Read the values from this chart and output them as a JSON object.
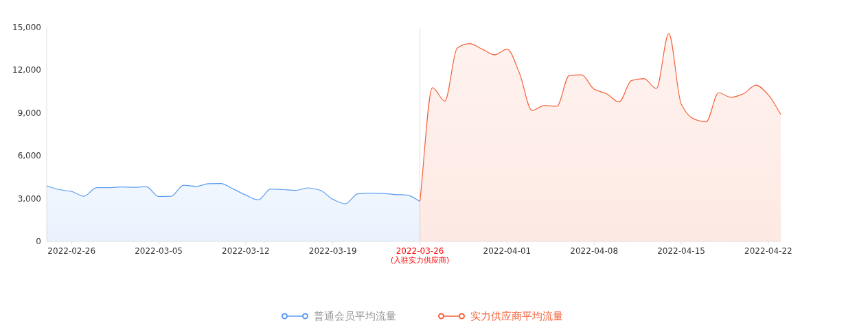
{
  "chart_data": {
    "type": "area",
    "categories": [
      null,
      null,
      "2022-02-26",
      null,
      null,
      null,
      null,
      null,
      null,
      "2022-03-05",
      null,
      null,
      null,
      null,
      null,
      null,
      "2022-03-12",
      null,
      null,
      null,
      null,
      null,
      null,
      "2022-03-19",
      null,
      null,
      null,
      null,
      null,
      null,
      "2022-03-26",
      null,
      null,
      null,
      null,
      null,
      null,
      "2022-04-01",
      null,
      null,
      null,
      null,
      null,
      null,
      "2022-04-08",
      null,
      null,
      null,
      null,
      null,
      null,
      "2022-04-15",
      null,
      null,
      null,
      null,
      null,
      null,
      "2022-04-22",
      null
    ],
    "series": [
      {
        "name": "普通会员平均流量",
        "color": "#5b9cf0",
        "values": [
          3890,
          3630,
          3500,
          3170,
          3770,
          3770,
          3820,
          3790,
          3840,
          3150,
          3170,
          3940,
          3860,
          4040,
          4060,
          3670,
          3250,
          2910,
          3670,
          3630,
          3580,
          3750,
          3580,
          2950,
          2640,
          3340,
          3380,
          3360,
          3290,
          3240,
          2810,
          null,
          null,
          null,
          null,
          null,
          null,
          null,
          null,
          null,
          null,
          null,
          null,
          null,
          null,
          null,
          null,
          null,
          null,
          null,
          null,
          null,
          null,
          null,
          null,
          null,
          null,
          null,
          null,
          null
        ]
      },
      {
        "name": "实力供应商平均流量",
        "color": "#f4623a",
        "values": [
          null,
          null,
          null,
          null,
          null,
          null,
          null,
          null,
          null,
          null,
          null,
          null,
          null,
          null,
          null,
          null,
          null,
          null,
          null,
          null,
          null,
          null,
          null,
          null,
          null,
          null,
          null,
          null,
          null,
          null,
          2810,
          10780,
          9840,
          13560,
          13860,
          13480,
          13080,
          13480,
          11790,
          9180,
          9530,
          9470,
          11630,
          11680,
          10670,
          10350,
          9780,
          11280,
          11410,
          10720,
          14570,
          9630,
          8590,
          8380,
          10420,
          10100,
          10350,
          10960,
          10270,
          8910
        ]
      }
    ],
    "ylim": [
      0,
      15000
    ],
    "yticks": [
      0,
      {
        "value": 3000,
        "label": "3,000"
      },
      {
        "value": 6000,
        "label": "6,000"
      },
      {
        "value": 9000,
        "label": "9,000"
      },
      {
        "value": 12000,
        "label": "12,000"
      },
      {
        "value": 15000,
        "label": "15,000"
      }
    ],
    "ref_lines": [
      {
        "axis": "x",
        "value": "2022-03-26",
        "label": "(入驻实力供应商)",
        "color": "#d9d9d9"
      }
    ],
    "legend": "bottom"
  }
}
